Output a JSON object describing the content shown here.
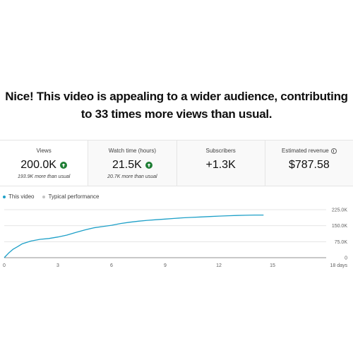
{
  "headline": {
    "line1": "Nice! This video is appealing to a wider audience, contributing",
    "line2": "to 33 times more views than usual."
  },
  "metrics": [
    {
      "label": "Views",
      "value": "200.0K",
      "trend_icon": "up-arrow-icon",
      "sub": "193.9K more than usual"
    },
    {
      "label": "Watch time (hours)",
      "value": "21.5K",
      "trend_icon": "up-arrow-icon",
      "sub": "20.7K more than usual"
    },
    {
      "label": "Subscribers",
      "value": "+1.3K",
      "sub": ""
    },
    {
      "label": "Estimated revenue",
      "value": "$787.58",
      "sub": "",
      "info_icon": "info-icon"
    }
  ],
  "legend": {
    "this_video": "This video",
    "typical": "Typical performance"
  },
  "colors": {
    "line": "#1ea0c8",
    "typical_dot": "#c4c4c4",
    "up": "#1e7e34",
    "grid": "#e5e5e5"
  },
  "chart_data": {
    "type": "line",
    "xlabel": "",
    "ylabel": "",
    "x_ticks": [
      "0",
      "3",
      "6",
      "9",
      "12",
      "15",
      "18 days"
    ],
    "x_tick_values": [
      0,
      3,
      6,
      9,
      12,
      15,
      18
    ],
    "xlim": [
      0,
      18
    ],
    "y_ticks": [
      "225.0K",
      "150.0K",
      "75.0K",
      "0"
    ],
    "y_tick_values": [
      225000,
      150000,
      75000,
      0
    ],
    "ylim": [
      0,
      225000
    ],
    "grid": true,
    "series": [
      {
        "name": "This video",
        "x": [
          0,
          0.25,
          0.5,
          0.75,
          1,
          1.5,
          2,
          2.5,
          3,
          3.5,
          4,
          4.5,
          5,
          5.5,
          6,
          6.5,
          7,
          7.5,
          8,
          8.5,
          9,
          9.5,
          10,
          10.5,
          11,
          11.5,
          12,
          12.5,
          13,
          13.5,
          14,
          14.5
        ],
        "values": [
          0,
          22000,
          40000,
          52000,
          65000,
          78000,
          86000,
          90000,
          97000,
          106000,
          118000,
          130000,
          140000,
          146000,
          152000,
          160000,
          166000,
          171000,
          175000,
          178000,
          181000,
          184000,
          187000,
          189000,
          191000,
          193000,
          195000,
          196500,
          198000,
          199000,
          199800,
          200000
        ]
      }
    ]
  }
}
